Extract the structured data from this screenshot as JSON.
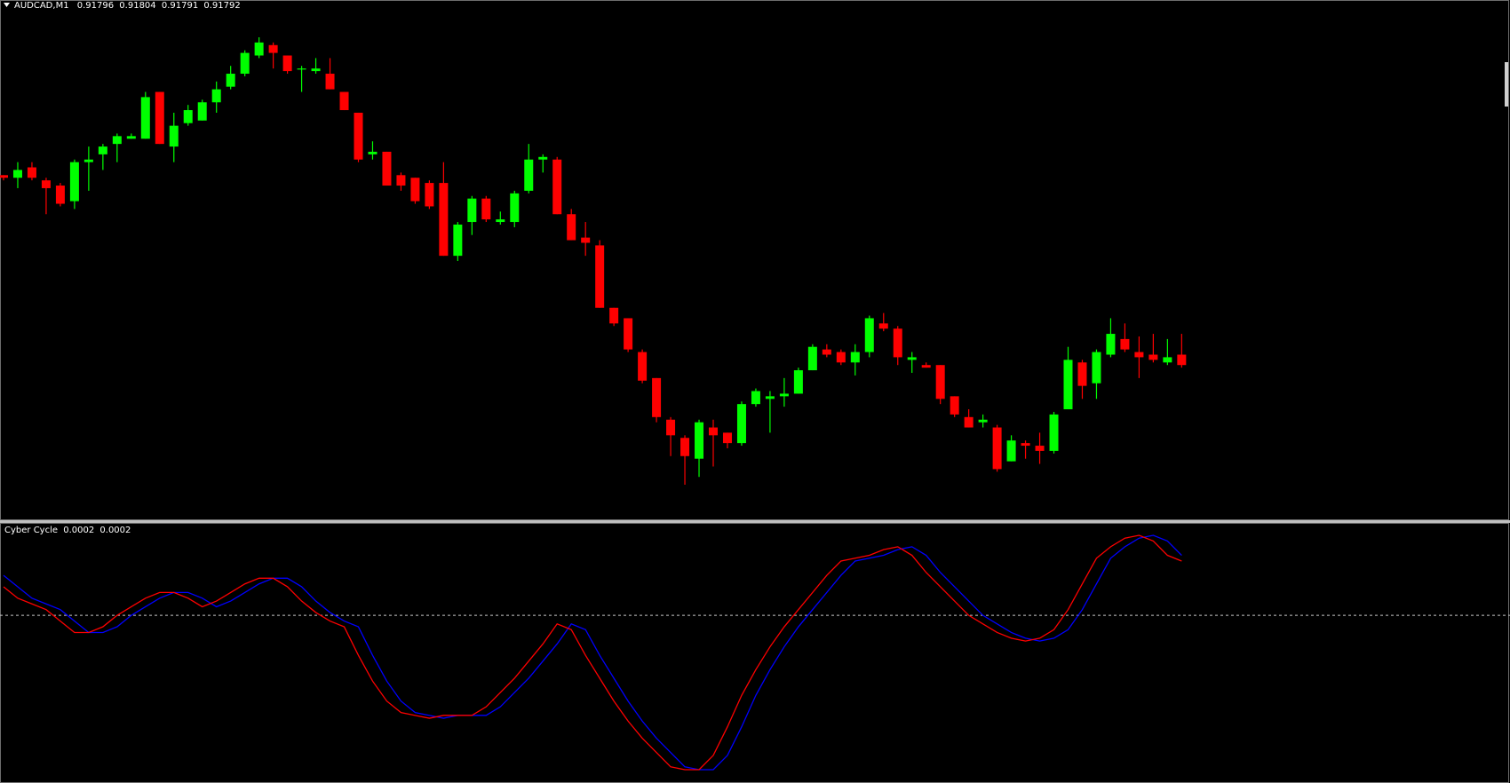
{
  "chart_data": [
    {
      "type": "candlestick",
      "title": "AUDCAD,M1",
      "up_color": "#00ff00",
      "down_color": "#ff0000",
      "open": [
        0.91865,
        0.91864,
        0.91868,
        0.91863,
        0.91861,
        0.91855,
        0.9187,
        0.91873,
        0.91877,
        0.91879,
        0.91879,
        0.91897,
        0.91876,
        0.91885,
        0.91886,
        0.91893,
        0.91899,
        0.91904,
        0.91911,
        0.91915,
        0.91911,
        0.91906,
        0.91905,
        0.91904,
        0.91897,
        0.91889,
        0.91873,
        0.91874,
        0.91865,
        0.91864,
        0.91862,
        0.91862,
        0.91834,
        0.91847,
        0.91856,
        0.91847,
        0.91847,
        0.91859,
        0.91871,
        0.91871,
        0.9185,
        0.91841,
        0.91838,
        0.91814,
        0.9181,
        0.91797,
        0.91787,
        0.91771,
        0.91764,
        0.91756,
        0.91768,
        0.91766,
        0.91762,
        0.91777,
        0.91779,
        0.9178,
        0.91781,
        0.9179,
        0.91798,
        0.91797,
        0.91793,
        0.91797,
        0.91808,
        0.91806,
        0.91794,
        0.91792,
        0.91792,
        0.9178,
        0.91772,
        0.9177,
        0.91768,
        0.91755,
        0.91762,
        0.91761,
        0.91759,
        0.91775,
        0.91793,
        0.91785,
        0.91796,
        0.91802,
        0.91797,
        0.91796,
        0.91793,
        0.91796
      ],
      "high": [
        0.91865,
        0.9187,
        0.9187,
        0.91864,
        0.91862,
        0.91871,
        0.91876,
        0.91877,
        0.91881,
        0.91881,
        0.91897,
        0.91897,
        0.91889,
        0.91892,
        0.91894,
        0.91901,
        0.91907,
        0.91913,
        0.91918,
        0.91916,
        0.91911,
        0.91907,
        0.9191,
        0.9191,
        0.91897,
        0.91889,
        0.91878,
        0.91874,
        0.91866,
        0.91864,
        0.91863,
        0.9187,
        0.91847,
        0.91857,
        0.91857,
        0.91851,
        0.91859,
        0.91877,
        0.91873,
        0.91872,
        0.91852,
        0.91847,
        0.9184,
        0.91814,
        0.9181,
        0.91798,
        0.91787,
        0.91772,
        0.91765,
        0.91771,
        0.91771,
        0.91766,
        0.91778,
        0.91783,
        0.91782,
        0.91787,
        0.91791,
        0.918,
        0.918,
        0.91798,
        0.918,
        0.91811,
        0.91812,
        0.91807,
        0.91797,
        0.91793,
        0.91792,
        0.9178,
        0.91775,
        0.91773,
        0.91769,
        0.91765,
        0.91763,
        0.91766,
        0.91774,
        0.91799,
        0.91794,
        0.91798,
        0.9181,
        0.91808,
        0.91803,
        0.91804,
        0.91802,
        0.91804
      ],
      "low": [
        0.91863,
        0.9186,
        0.91863,
        0.9185,
        0.91853,
        0.91852,
        0.91859,
        0.91867,
        0.9187,
        0.91879,
        0.91879,
        0.91877,
        0.9187,
        0.91884,
        0.91886,
        0.91889,
        0.91898,
        0.91903,
        0.9191,
        0.91906,
        0.91904,
        0.91897,
        0.91904,
        0.91898,
        0.9189,
        0.9187,
        0.91871,
        0.91861,
        0.91859,
        0.91854,
        0.91852,
        0.91834,
        0.91832,
        0.91842,
        0.91847,
        0.91846,
        0.91845,
        0.91858,
        0.91866,
        0.9185,
        0.9184,
        0.91834,
        0.91814,
        0.91807,
        0.91797,
        0.91785,
        0.9177,
        0.91757,
        0.91746,
        0.91749,
        0.91753,
        0.9176,
        0.91761,
        0.91776,
        0.91766,
        0.91776,
        0.91781,
        0.9179,
        0.91795,
        0.91792,
        0.91788,
        0.91795,
        0.91805,
        0.91792,
        0.91789,
        0.91791,
        0.91777,
        0.91772,
        0.91768,
        0.91768,
        0.91751,
        0.91755,
        0.91756,
        0.91754,
        0.91758,
        0.91775,
        0.91779,
        0.91779,
        0.91795,
        0.91797,
        0.91787,
        0.91793,
        0.91792,
        0.91791
      ],
      "close": [
        0.91864,
        0.91867,
        0.91864,
        0.9186,
        0.91854,
        0.9187,
        0.91871,
        0.91876,
        0.9188,
        0.9188,
        0.91895,
        0.91877,
        0.91884,
        0.9189,
        0.91893,
        0.91898,
        0.91904,
        0.91912,
        0.91916,
        0.91912,
        0.91905,
        0.91906,
        0.91906,
        0.91898,
        0.9189,
        0.91871,
        0.91874,
        0.91861,
        0.91861,
        0.91855,
        0.91853,
        0.91834,
        0.91846,
        0.91856,
        0.91848,
        0.91848,
        0.91858,
        0.91871,
        0.91872,
        0.9185,
        0.9184,
        0.91839,
        0.91814,
        0.91808,
        0.91798,
        0.91786,
        0.91772,
        0.91765,
        0.91757,
        0.9177,
        0.91765,
        0.91762,
        0.91777,
        0.91782,
        0.9178,
        0.91781,
        0.9179,
        0.91799,
        0.91796,
        0.91793,
        0.91797,
        0.9181,
        0.91806,
        0.91795,
        0.91795,
        0.91791,
        0.91779,
        0.91773,
        0.91768,
        0.91771,
        0.91752,
        0.91763,
        0.91761,
        0.91759,
        0.91773,
        0.91794,
        0.91784,
        0.91797,
        0.91804,
        0.91798,
        0.91795,
        0.91794,
        0.91795,
        0.91792
      ]
    },
    {
      "type": "line",
      "title": "Cyber Cycle",
      "title_values": [
        0.0002,
        0.0002
      ],
      "level": 0,
      "level_color": "#c8c8c8",
      "series": [
        {
          "color": "#0000ff",
          "values": [
            0.00014,
            0.0001,
            6e-05,
            4e-05,
            2e-05,
            -2e-05,
            -6e-05,
            -6e-05,
            -4e-05,
            0,
            3e-05,
            6e-05,
            8e-05,
            8e-05,
            6e-05,
            3e-05,
            5e-05,
            8e-05,
            0.00011,
            0.00013,
            0.00013,
            0.0001,
            5e-05,
            1e-05,
            -2e-05,
            -4e-05,
            -0.00014,
            -0.00023,
            -0.0003,
            -0.00034,
            -0.00035,
            -0.00036,
            -0.00035,
            -0.00035,
            -0.00035,
            -0.00032,
            -0.00027,
            -0.00022,
            -0.00016,
            -0.0001,
            -3e-05,
            -5e-05,
            -0.00014,
            -0.00022,
            -0.0003,
            -0.00037,
            -0.00043,
            -0.00048,
            -0.00053,
            -0.00054,
            -0.00054,
            -0.00049,
            -0.00039,
            -0.00028,
            -0.00019,
            -0.00011,
            -4e-05,
            2e-05,
            8e-05,
            0.00014,
            0.00019,
            0.0002,
            0.00021,
            0.00023,
            0.00024,
            0.00021,
            0.00015,
            0.0001,
            5e-05,
            0,
            -3e-05,
            -6e-05,
            -8e-05,
            -9e-05,
            -8e-05,
            -5e-05,
            2e-05,
            0.00011,
            0.0002,
            0.00024,
            0.00027,
            0.00028,
            0.00026,
            0.00021
          ]
        },
        {
          "color": "#ff0000",
          "values": [
            0.0001,
            6e-05,
            4e-05,
            2e-05,
            -2e-05,
            -6e-05,
            -6e-05,
            -4e-05,
            0,
            3e-05,
            6e-05,
            8e-05,
            8e-05,
            6e-05,
            3e-05,
            5e-05,
            8e-05,
            0.00011,
            0.00013,
            0.00013,
            0.0001,
            5e-05,
            1e-05,
            -2e-05,
            -4e-05,
            -0.00014,
            -0.00023,
            -0.0003,
            -0.00034,
            -0.00035,
            -0.00036,
            -0.00035,
            -0.00035,
            -0.00035,
            -0.00032,
            -0.00027,
            -0.00022,
            -0.00016,
            -0.0001,
            -3e-05,
            -5e-05,
            -0.00014,
            -0.00022,
            -0.0003,
            -0.00037,
            -0.00043,
            -0.00048,
            -0.00053,
            -0.00054,
            -0.00054,
            -0.00049,
            -0.00039,
            -0.00028,
            -0.00019,
            -0.00011,
            -4e-05,
            2e-05,
            8e-05,
            0.00014,
            0.00019,
            0.0002,
            0.00021,
            0.00023,
            0.00024,
            0.00021,
            0.00015,
            0.0001,
            5e-05,
            0,
            -3e-05,
            -6e-05,
            -8e-05,
            -9e-05,
            -8e-05,
            -5e-05,
            2e-05,
            0.00011,
            0.0002,
            0.00024,
            0.00027,
            0.00028,
            0.00026,
            0.00021,
            0.00019
          ]
        }
      ]
    }
  ]
}
